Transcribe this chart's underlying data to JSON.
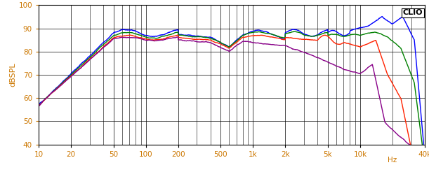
{
  "title": "",
  "ylabel": "dBSPL",
  "xlabel_right": "Hz",
  "label_clio": "CLIO",
  "xmin": 10,
  "xmax": 40000,
  "ymin": 40,
  "ymax": 100,
  "yticks": [
    40,
    50,
    60,
    70,
    80,
    90,
    100
  ],
  "xticks": [
    10,
    20,
    50,
    100,
    200,
    500,
    1000,
    2000,
    5000,
    10000,
    40000
  ],
  "xticklabels": [
    "10",
    "20",
    "50",
    "100",
    "200",
    "500",
    "1k",
    "2k",
    "5k",
    "10k",
    "40k"
  ],
  "background_color": "#ffffff",
  "plot_bg_color": "#ffffff",
  "grid_color": "#000000",
  "colors": [
    "#0000ff",
    "#008000",
    "#ff2200",
    "#880088"
  ],
  "tick_color": "#cc7700",
  "linewidth": 1.0
}
